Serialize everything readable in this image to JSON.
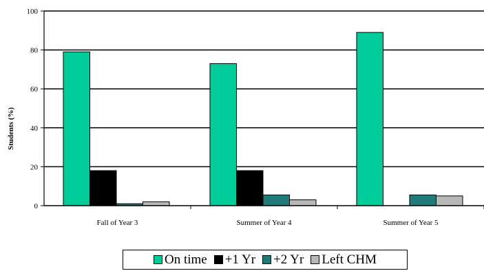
{
  "chart_data": {
    "type": "bar",
    "title": "",
    "xlabel": "",
    "ylabel": "Students (%)",
    "ylim": [
      0,
      100
    ],
    "yticks": [
      0,
      20,
      40,
      60,
      80,
      100
    ],
    "grid": true,
    "legend_position": "bottom",
    "categories": [
      "Fall of Year 3",
      "Summer of Year 4",
      "Summer of Year 5"
    ],
    "series": [
      {
        "name": "On time",
        "color": "#00CC99",
        "values": [
          79,
          73,
          89
        ]
      },
      {
        "name": "+1 Yr",
        "color": "#000000",
        "values": [
          18,
          18,
          0
        ]
      },
      {
        "name": "+2 Yr",
        "color": "#1F7A7A",
        "values": [
          1,
          5.5,
          5.5
        ]
      },
      {
        "name": "Left CHM",
        "color": "#B8B8B8",
        "values": [
          2,
          3,
          5
        ]
      }
    ]
  }
}
